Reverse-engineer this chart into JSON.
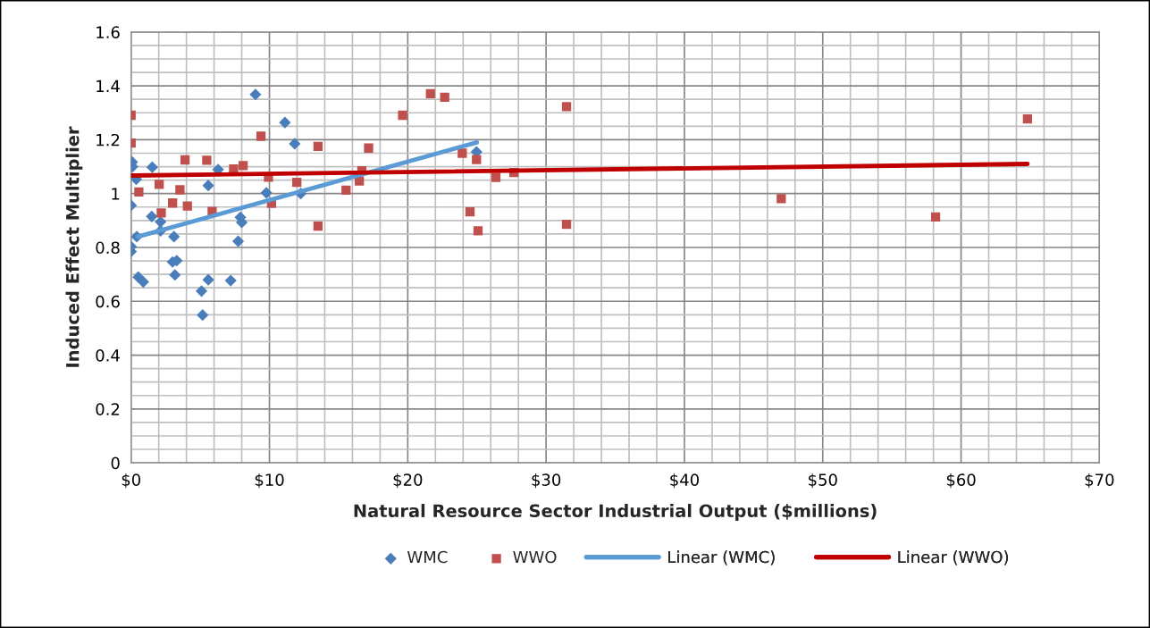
{
  "chart_data": {
    "type": "scatter",
    "xlabel": "Natural Resource Sector Industrial Output ($millions)",
    "ylabel": "Induced Effect Multiplier",
    "xlim": [
      0,
      70
    ],
    "xticks": [
      {
        "value": 0,
        "label": "$0"
      },
      {
        "value": 10,
        "label": "$10"
      },
      {
        "value": 20,
        "label": "$20"
      },
      {
        "value": 30,
        "label": "$30"
      },
      {
        "value": 40,
        "label": "$40"
      },
      {
        "value": 50,
        "label": "$50"
      },
      {
        "value": 60,
        "label": "$60"
      },
      {
        "value": 70,
        "label": "$70"
      }
    ],
    "ylim": [
      0,
      1.6
    ],
    "yticks": [
      0,
      0.2,
      0.4,
      0.6,
      0.8,
      1,
      1.2,
      1.4,
      1.6
    ],
    "grid": true,
    "legend": "bottom",
    "series": [
      {
        "name": "WMC",
        "marker": "diamond",
        "color": "#4a7ebb",
        "x": [
          0.08,
          0.1,
          0.37,
          0,
          1.53,
          1.49,
          2.13,
          2.13,
          3.1,
          0.41,
          0,
          0,
          0.52,
          0.88,
          3.0,
          3.3,
          3.17,
          5.58,
          6.29,
          5.09,
          5.58,
          5.17,
          7.2,
          7.74,
          7.9,
          8.0,
          8.99,
          9.78,
          11.12,
          11.83,
          12.26,
          24.97
        ],
        "values": [
          1.117,
          1.1,
          1.053,
          0.956,
          1.098,
          0.915,
          0.895,
          0.862,
          0.84,
          0.84,
          0.803,
          0.785,
          0.69,
          0.672,
          0.746,
          0.751,
          0.698,
          1.03,
          1.089,
          0.638,
          0.68,
          0.549,
          0.677,
          0.823,
          0.912,
          0.893,
          1.368,
          1.003,
          1.264,
          1.185,
          1.0,
          1.155
        ]
      },
      {
        "name": "WWO",
        "marker": "square",
        "color": "#c0504d",
        "x": [
          0,
          0,
          3.9,
          5.47,
          0.56,
          2.03,
          3.53,
          3.0,
          4.07,
          2.18,
          5.86,
          7.41,
          8.1,
          9.39,
          9.93,
          10.15,
          11.98,
          13.51,
          13.51,
          15.54,
          16.5,
          16.68,
          17.17,
          19.63,
          21.64,
          22.67,
          23.94,
          24.97,
          24.5,
          25.08,
          26.37,
          27.67,
          31.48,
          31.48,
          47.0,
          58.16,
          64.8
        ],
        "values": [
          1.291,
          1.188,
          1.125,
          1.124,
          1.006,
          1.034,
          1.014,
          0.965,
          0.954,
          0.928,
          0.934,
          1.091,
          1.104,
          1.213,
          1.061,
          0.964,
          1.042,
          1.175,
          0.879,
          1.013,
          1.047,
          1.085,
          1.169,
          1.291,
          1.371,
          1.358,
          1.15,
          1.126,
          0.932,
          0.862,
          1.06,
          1.078,
          1.323,
          0.886,
          0.981,
          0.913,
          1.277
        ]
      },
      {
        "name": "Linear (WMC)",
        "type": "line",
        "marker": "none",
        "line_style": "solid",
        "color": "#5b9bd5",
        "x": [
          0.5,
          25
        ],
        "values": [
          0.84,
          1.19
        ]
      },
      {
        "name": "Linear (WWO)",
        "type": "line",
        "marker": "none",
        "line_style": "solid",
        "color": "#c00000",
        "x": [
          0,
          64.8
        ],
        "values": [
          1.067,
          1.11
        ]
      }
    ]
  }
}
